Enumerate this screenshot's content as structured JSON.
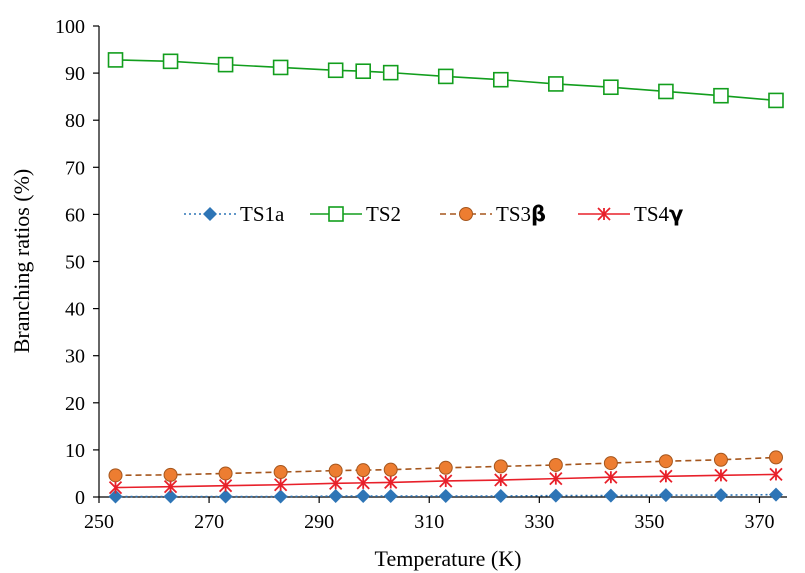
{
  "chart_data": {
    "type": "line",
    "title": "",
    "xlabel": "Temperature (K)",
    "ylabel": "Branching ratios  (%)",
    "xlim": [
      250,
      375
    ],
    "ylim": [
      0,
      100
    ],
    "xticks": [
      "250",
      "270",
      "290",
      "310",
      "330",
      "350",
      "370"
    ],
    "yticks": [
      "0",
      "10",
      "20",
      "30",
      "40",
      "50",
      "60",
      "70",
      "80",
      "90",
      "100"
    ],
    "grid": false,
    "legend_position": "center-upper",
    "x": [
      253,
      263,
      273,
      283,
      293,
      298,
      303,
      313,
      323,
      333,
      343,
      353,
      363,
      373
    ],
    "series": [
      {
        "name": "TS1a",
        "legend_base": "TS1a",
        "legend_greek": "",
        "color": "#2E75B6",
        "marker": "diamond",
        "line_style": "dotted",
        "values": [
          0.1,
          0.1,
          0.1,
          0.1,
          0.2,
          0.2,
          0.2,
          0.2,
          0.2,
          0.3,
          0.3,
          0.4,
          0.4,
          0.5
        ]
      },
      {
        "name": "TS2",
        "legend_base": "TS2",
        "legend_greek": "",
        "color": "#129E1D",
        "marker": "square-open",
        "line_style": "solid",
        "values": [
          92.8,
          92.5,
          91.8,
          91.2,
          90.6,
          90.4,
          90.1,
          89.3,
          88.6,
          87.7,
          87.0,
          86.1,
          85.2,
          84.2
        ]
      },
      {
        "name": "TS3β",
        "legend_base": "TS3",
        "legend_greek": "β",
        "color": "#A5561D",
        "marker_fill": "#ED7D31",
        "marker": "circle",
        "line_style": "dashed",
        "values": [
          4.6,
          4.7,
          5.0,
          5.3,
          5.6,
          5.7,
          5.8,
          6.2,
          6.5,
          6.8,
          7.2,
          7.6,
          7.9,
          8.4
        ]
      },
      {
        "name": "TS4γ",
        "legend_base": "TS4",
        "legend_greek": "γ",
        "color": "#E8202A",
        "marker": "asterisk",
        "line_style": "solid",
        "values": [
          2.0,
          2.2,
          2.4,
          2.6,
          2.9,
          3.0,
          3.1,
          3.4,
          3.6,
          3.9,
          4.2,
          4.4,
          4.6,
          4.8
        ]
      }
    ]
  }
}
